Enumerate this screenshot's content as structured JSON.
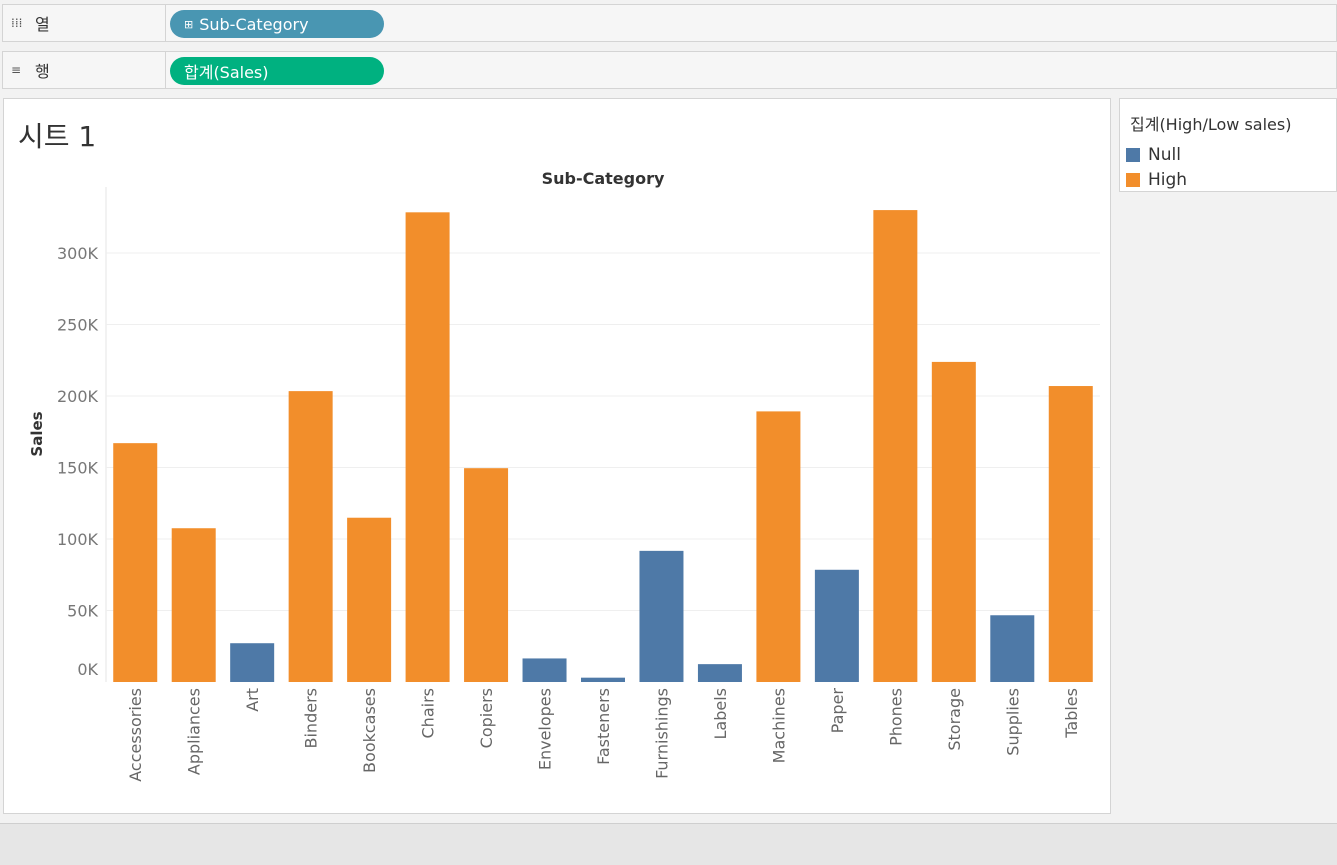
{
  "shelves": {
    "columns": {
      "label": "열",
      "icon": "columns-icon",
      "pill": "Sub-Category",
      "pill_color": "#4996b2"
    },
    "rows": {
      "label": "행",
      "icon": "rows-icon",
      "pill": "합계(Sales)",
      "pill_color": "#00b180"
    }
  },
  "sheet": {
    "title": "시트 1"
  },
  "legend": {
    "title": "집계(High/Low sales)",
    "items": [
      {
        "label": "Null",
        "color": "#4e79a7"
      },
      {
        "label": "High",
        "color": "#f28e2b"
      }
    ]
  },
  "chart_data": {
    "type": "bar",
    "title": "Sub-Category",
    "xlabel": "",
    "ylabel": "Sales",
    "ylim": [
      0,
      350000
    ],
    "yticks": [
      0,
      50000,
      100000,
      150000,
      200000,
      250000,
      300000
    ],
    "ytick_labels": [
      "0K",
      "50K",
      "100K",
      "150K",
      "200K",
      "250K",
      "300K"
    ],
    "categories": [
      "Accessories",
      "Appliances",
      "Art",
      "Binders",
      "Bookcases",
      "Chairs",
      "Copiers",
      "Envelopes",
      "Fasteners",
      "Furnishings",
      "Labels",
      "Machines",
      "Paper",
      "Phones",
      "Storage",
      "Supplies",
      "Tables"
    ],
    "values": [
      167026,
      107532,
      27119,
      203413,
      114880,
      328449,
      149528,
      16476,
      3024,
      91705,
      12486,
      189239,
      78479,
      330007,
      223844,
      46674,
      206966
    ],
    "groups": [
      "High",
      "High",
      "Null",
      "High",
      "High",
      "High",
      "High",
      "Null",
      "Null",
      "Null",
      "Null",
      "High",
      "Null",
      "High",
      "High",
      "Null",
      "High"
    ],
    "colors": {
      "High": "#f28e2b",
      "Null": "#4e79a7"
    },
    "grid": true
  }
}
